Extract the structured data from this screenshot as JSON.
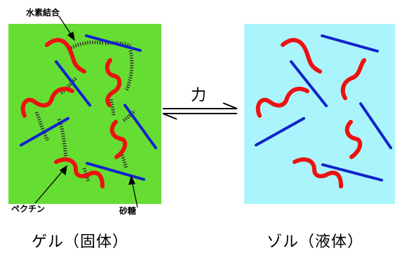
{
  "labels": {
    "hydrogen_bond": "水素結合",
    "pectin": "ペクチン",
    "sugar": "砂糖",
    "force": "力",
    "gel_caption": "ゲル（固体）",
    "sol_caption": "ゾル（液体）"
  },
  "colors": {
    "gel_background": "#66dd33",
    "sol_background": "#aaf5fb",
    "pectin": "#ee1111",
    "sugar": "#1122cc",
    "hydrogen_bond": "#333333"
  }
}
